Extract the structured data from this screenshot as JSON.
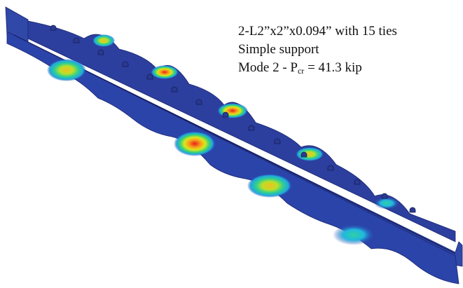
{
  "annotation": {
    "line1": "2-L2”x2”x0.094” with 15 ties",
    "line2": "Simple support",
    "line3": {
      "prefix": "Mode 2 - P",
      "subscript": "cr",
      "suffix": " = 41.3 kip"
    }
  }
}
